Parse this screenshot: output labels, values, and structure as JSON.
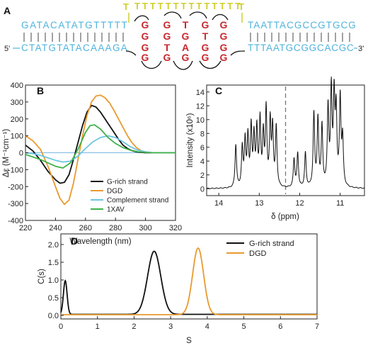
{
  "panel_a": {
    "label": "A",
    "top_strand": "GATACATATGTTTTT",
    "top_strand_right": "TAATTACGCCGTGCG",
    "bottom_strand": "CTATGTATACAAAGA",
    "bottom_strand_right": "TTTAATGCGGCACGC",
    "five_prime": "5'",
    "three_prime": "3'",
    "t_loop": "TTTTTTTTTTTTTT",
    "t_left": "T",
    "t_right": "T",
    "quartet_rows": [
      [
        "G",
        "G",
        "T",
        "G",
        "G"
      ],
      [
        "G",
        "G",
        "G",
        "T",
        "G"
      ],
      [
        "G",
        "T",
        "A",
        "G",
        "G"
      ],
      [
        "G",
        "G",
        "G",
        "G",
        "G"
      ]
    ],
    "colors": {
      "strand": "#4fb3dc",
      "guanine": "#c8282e",
      "loop": "#cfcf2e"
    }
  },
  "chart_data": [
    {
      "panel": "B",
      "type": "line",
      "xlabel": "Wavelength (nm)",
      "ylabel": "Δε (M⁻¹cm⁻¹)",
      "xlim": [
        220,
        320
      ],
      "ylim": [
        -400,
        400
      ],
      "xticks": [
        "220",
        "240",
        "260",
        "280",
        "300",
        "320"
      ],
      "yticks": [
        "-400",
        "-300",
        "-200",
        "-100",
        "0",
        "100",
        "200",
        "300",
        "400"
      ],
      "legend_position": "lower-right",
      "series": [
        {
          "name": "G-rich strand",
          "color": "#111111",
          "x": [
            220,
            225,
            230,
            235,
            240,
            243,
            246,
            249,
            252,
            255,
            258,
            261,
            264,
            267,
            270,
            273,
            276,
            279,
            282,
            285,
            288,
            291,
            294,
            297,
            300,
            305,
            310,
            315,
            320
          ],
          "y": [
            45,
            10,
            -45,
            -110,
            -160,
            -180,
            -175,
            -130,
            -40,
            60,
            160,
            240,
            280,
            270,
            240,
            200,
            160,
            120,
            80,
            45,
            25,
            12,
            5,
            2,
            0,
            0,
            0,
            0,
            0
          ]
        },
        {
          "name": "DGD",
          "color": "#e89a2e",
          "x": [
            220,
            225,
            230,
            235,
            240,
            243,
            246,
            249,
            252,
            255,
            258,
            261,
            264,
            267,
            270,
            273,
            276,
            279,
            282,
            285,
            288,
            291,
            294,
            297,
            300,
            305,
            310,
            315,
            320
          ],
          "y": [
            100,
            70,
            20,
            -80,
            -200,
            -270,
            -305,
            -280,
            -180,
            -40,
            100,
            220,
            300,
            335,
            340,
            325,
            295,
            250,
            200,
            150,
            100,
            60,
            30,
            12,
            4,
            0,
            0,
            0,
            0
          ]
        },
        {
          "name": "Complement strand",
          "color": "#6cc5e3",
          "x": [
            220,
            225,
            230,
            235,
            240,
            245,
            250,
            255,
            260,
            265,
            270,
            275,
            280,
            285,
            290,
            295,
            300,
            305,
            310,
            315,
            320
          ],
          "y": [
            0,
            -5,
            -15,
            -30,
            -45,
            -55,
            -50,
            -20,
            25,
            65,
            90,
            100,
            90,
            65,
            35,
            15,
            5,
            0,
            0,
            0,
            0
          ]
        },
        {
          "name": "1XAV",
          "color": "#3fb24a",
          "x": [
            220,
            225,
            230,
            235,
            240,
            245,
            250,
            255,
            260,
            263,
            266,
            270,
            275,
            280,
            285,
            290,
            295,
            300,
            305,
            310,
            315,
            320
          ],
          "y": [
            -10,
            -25,
            -40,
            -60,
            -80,
            -90,
            -60,
            20,
            120,
            160,
            165,
            140,
            90,
            55,
            30,
            15,
            6,
            2,
            0,
            0,
            0,
            0
          ]
        }
      ]
    },
    {
      "panel": "C",
      "type": "line",
      "xlabel": "δ (ppm)",
      "ylabel": "Intensity (x10⁶)",
      "xlim": [
        14.3,
        10.4
      ],
      "ylim": [
        -1,
        15
      ],
      "xticks": [
        "14",
        "13",
        "12",
        "11"
      ],
      "yticks": [
        "0",
        "2",
        "4",
        "6",
        "8",
        "10",
        "12",
        "14"
      ],
      "dashed_line_x": 12.35,
      "peaks": [
        [
          13.58,
          6.2
        ],
        [
          13.42,
          5.6
        ],
        [
          13.35,
          6.5
        ],
        [
          13.28,
          7.1
        ],
        [
          13.2,
          8.4
        ],
        [
          13.13,
          6.9
        ],
        [
          13.06,
          8.1
        ],
        [
          12.98,
          9.4
        ],
        [
          12.9,
          7.2
        ],
        [
          12.83,
          11.0
        ],
        [
          12.73,
          9.2
        ],
        [
          12.67,
          8.3
        ],
        [
          12.58,
          8.6
        ],
        [
          12.14,
          4.1
        ],
        [
          12.05,
          4.9
        ],
        [
          11.86,
          5.0
        ],
        [
          11.65,
          10.6
        ],
        [
          11.55,
          9.7
        ],
        [
          11.45,
          8.7
        ],
        [
          11.3,
          11.3
        ],
        [
          11.22,
          13.6
        ],
        [
          11.15,
          12.4
        ],
        [
          11.1,
          10.3
        ],
        [
          11.0,
          12.6
        ],
        [
          10.94,
          6.8
        ]
      ],
      "series": [
        {
          "color": "#111111"
        }
      ]
    },
    {
      "panel": "D",
      "type": "line",
      "xlabel": "S",
      "ylabel": "C(s)",
      "xlim": [
        0,
        7
      ],
      "ylim": [
        -0.1,
        2.3
      ],
      "xticks": [
        "0",
        "1",
        "2",
        "3",
        "4",
        "5",
        "6",
        "7"
      ],
      "yticks": [
        "0.0",
        "0.5",
        "1.0",
        "1.5",
        "2.0"
      ],
      "legend_position": "top-right",
      "series": [
        {
          "name": "G-rich strand",
          "color": "#111111",
          "peaks": [
            [
              0.12,
              0.95,
              0.05
            ],
            [
              2.55,
              1.78,
              0.18
            ]
          ],
          "baseline": 0.03
        },
        {
          "name": "DGD",
          "color": "#e89a2e",
          "peaks": [
            [
              3.75,
              1.88,
              0.15
            ]
          ],
          "baseline": 0.02
        }
      ]
    }
  ]
}
